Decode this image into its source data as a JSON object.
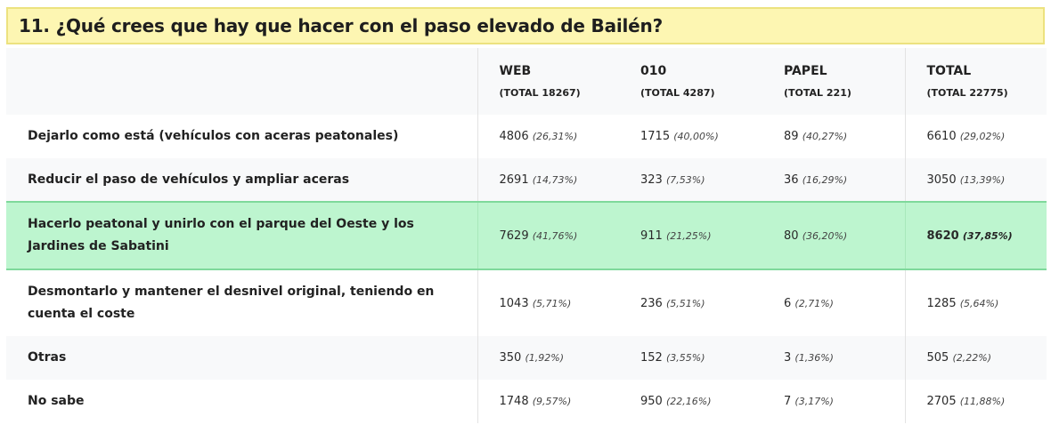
{
  "title": "11. ¿Qué crees que hay que hacer con el paso elevado de Bailén?",
  "columns": [
    {
      "label": "WEB",
      "sub": "(TOTAL 18267)"
    },
    {
      "label": "010",
      "sub": "(TOTAL 4287)"
    },
    {
      "label": "PAPEL",
      "sub": "(TOTAL 221)"
    },
    {
      "label": "TOTAL",
      "sub": "(TOTAL 22775)"
    }
  ],
  "rows": [
    {
      "label": "Dejarlo como está (vehículos con aceras peatonales)",
      "cells": [
        {
          "n": "4806",
          "p": "(26,31%)"
        },
        {
          "n": "1715",
          "p": "(40,00%)"
        },
        {
          "n": "89",
          "p": "(40,27%)"
        },
        {
          "n": "6610",
          "p": "(29,02%)"
        }
      ]
    },
    {
      "label": "Reducir el paso de vehículos y ampliar aceras",
      "cells": [
        {
          "n": "2691",
          "p": "(14,73%)"
        },
        {
          "n": "323",
          "p": "(7,53%)"
        },
        {
          "n": "36",
          "p": "(16,29%)"
        },
        {
          "n": "3050",
          "p": "(13,39%)"
        }
      ]
    },
    {
      "label": "Hacerlo peatonal y unirlo con el parque del Oeste y los Jardines de Sabatini",
      "cells": [
        {
          "n": "7629",
          "p": "(41,76%)"
        },
        {
          "n": "911",
          "p": "(21,25%)"
        },
        {
          "n": "80",
          "p": "(36,20%)"
        },
        {
          "n": "8620",
          "p": "(37,85%)"
        }
      ],
      "highlighted": true
    },
    {
      "label": "Desmontarlo y mantener el desnivel original, teniendo en cuenta el coste",
      "cells": [
        {
          "n": "1043",
          "p": "(5,71%)"
        },
        {
          "n": "236",
          "p": "(5,51%)"
        },
        {
          "n": "6",
          "p": "(2,71%)"
        },
        {
          "n": "1285",
          "p": "(5,64%)"
        }
      ]
    },
    {
      "label": "Otras",
      "cells": [
        {
          "n": "350",
          "p": "(1,92%)"
        },
        {
          "n": "152",
          "p": "(3,55%)"
        },
        {
          "n": "3",
          "p": "(1,36%)"
        },
        {
          "n": "505",
          "p": "(2,22%)"
        }
      ]
    },
    {
      "label": "No sabe",
      "cells": [
        {
          "n": "1748",
          "p": "(9,57%)"
        },
        {
          "n": "950",
          "p": "(22,16%)"
        },
        {
          "n": "7",
          "p": "(3,17%)"
        },
        {
          "n": "2705",
          "p": "(11,88%)"
        }
      ]
    }
  ],
  "colors": {
    "title_bg": "#fdf6b2",
    "highlight_bg": "#bdf5cf",
    "highlight_border": "#7fd99b"
  }
}
